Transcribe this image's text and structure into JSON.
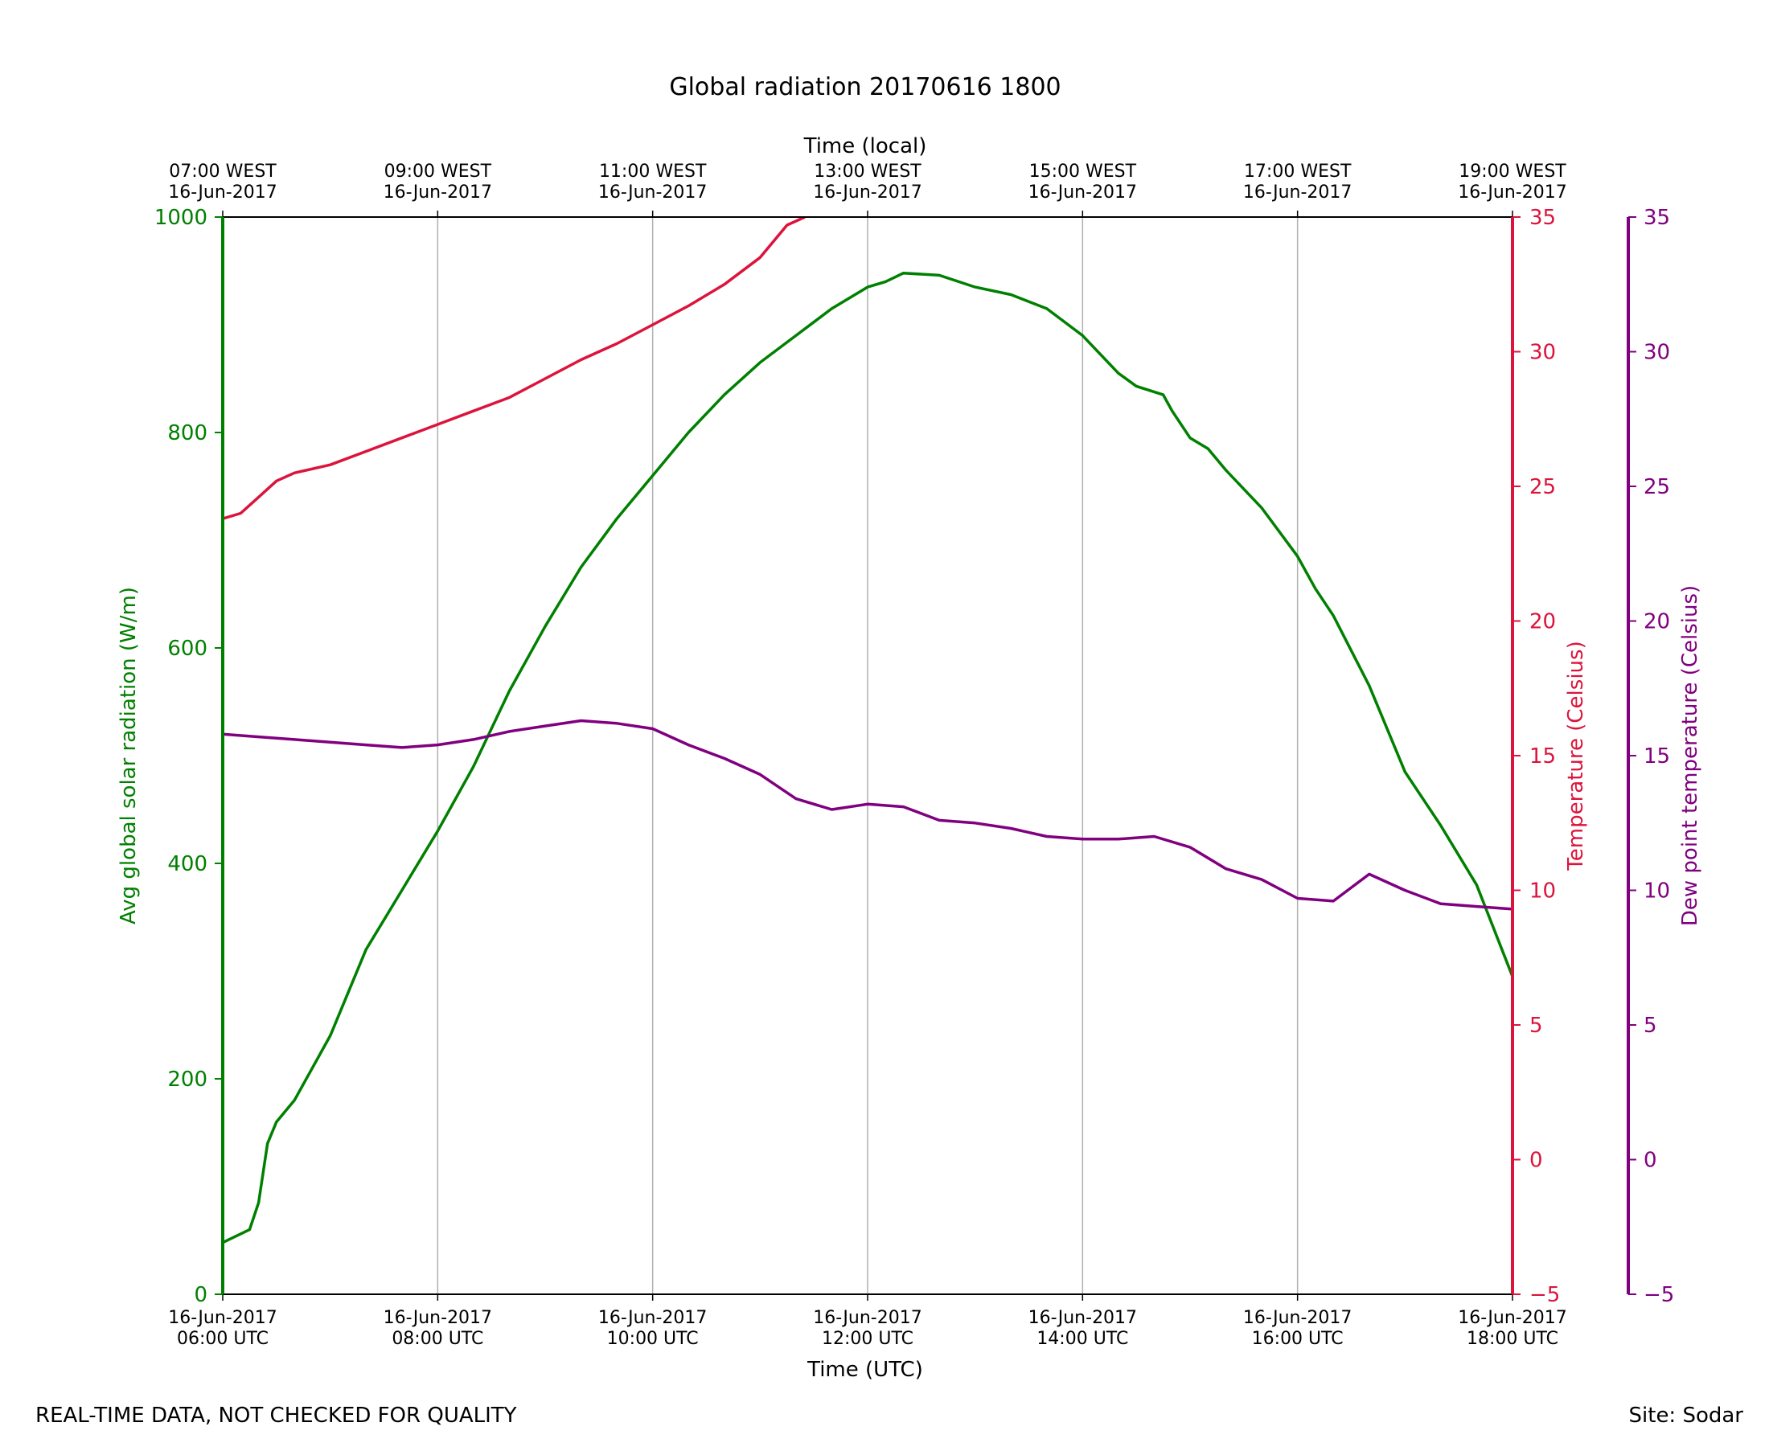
{
  "title": "Global radiation 20170616 1800",
  "footer": {
    "left": "REAL-TIME DATA, NOT CHECKED FOR QUALITY",
    "right": "Site: Sodar"
  },
  "colors": {
    "radiation": "#008000",
    "temperature": "#dc143c",
    "dewpoint": "#800080",
    "grid": "#b0b0b0",
    "axis": "#000000"
  },
  "chart_data": {
    "type": "line",
    "title": "Global radiation 20170616 1800",
    "xlabel": "Time (UTC)",
    "x2label": "Time (local)",
    "xlim": [
      "2017-06-16 06:00",
      "2017-06-16 18:00"
    ],
    "x_ticks": [
      {
        "bottom": [
          "16-Jun-2017",
          "06:00 UTC"
        ],
        "top": [
          "07:00 WEST",
          "16-Jun-2017"
        ]
      },
      {
        "bottom": [
          "16-Jun-2017",
          "08:00 UTC"
        ],
        "top": [
          "09:00 WEST",
          "16-Jun-2017"
        ]
      },
      {
        "bottom": [
          "16-Jun-2017",
          "10:00 UTC"
        ],
        "top": [
          "11:00 WEST",
          "16-Jun-2017"
        ]
      },
      {
        "bottom": [
          "16-Jun-2017",
          "12:00 UTC"
        ],
        "top": [
          "13:00 WEST",
          "16-Jun-2017"
        ]
      },
      {
        "bottom": [
          "16-Jun-2017",
          "14:00 UTC"
        ],
        "top": [
          "15:00 WEST",
          "16-Jun-2017"
        ]
      },
      {
        "bottom": [
          "16-Jun-2017",
          "16:00 UTC"
        ],
        "top": [
          "17:00 WEST",
          "16-Jun-2017"
        ]
      },
      {
        "bottom": [
          "16-Jun-2017",
          "18:00 UTC"
        ],
        "top": [
          "19:00 WEST",
          "16-Jun-2017"
        ]
      }
    ],
    "grid": "vertical",
    "axes": {
      "left": {
        "label": "Avg global solar radiation (W/m)",
        "ylim": [
          0,
          1000
        ],
        "ticks": [
          "0",
          "200",
          "400",
          "600",
          "800",
          "1000"
        ]
      },
      "right1": {
        "label": "Temperature (Celsius)",
        "ylim": [
          -5,
          35
        ],
        "ticks": [
          "−5",
          "0",
          "5",
          "10",
          "15",
          "20",
          "25",
          "30",
          "35"
        ]
      },
      "right2": {
        "label": "Dew point temperature (Celsius)",
        "ylim": [
          -5,
          35
        ],
        "ticks": [
          "−5",
          "0",
          "5",
          "10",
          "15",
          "20",
          "25",
          "30",
          "35"
        ]
      }
    },
    "series": [
      {
        "name": "Avg global solar radiation (W/m)",
        "axis": "left",
        "x": [
          "06:00",
          "06:15",
          "06:20",
          "06:25",
          "06:30",
          "06:40",
          "07:00",
          "07:20",
          "07:40",
          "08:00",
          "08:20",
          "08:40",
          "09:00",
          "09:20",
          "09:40",
          "10:00",
          "10:20",
          "10:40",
          "11:00",
          "11:20",
          "11:40",
          "12:00",
          "12:10",
          "12:20",
          "12:40",
          "13:00",
          "13:20",
          "13:40",
          "14:00",
          "14:20",
          "14:30",
          "14:45",
          "14:50",
          "15:00",
          "15:10",
          "15:20",
          "15:40",
          "16:00",
          "16:10",
          "16:20",
          "16:40",
          "17:00",
          "17:20",
          "17:40",
          "18:00"
        ],
        "values": [
          48,
          60,
          85,
          140,
          160,
          180,
          240,
          320,
          375,
          430,
          490,
          560,
          620,
          675,
          720,
          760,
          800,
          835,
          865,
          890,
          915,
          935,
          940,
          948,
          946,
          935,
          928,
          915,
          890,
          855,
          843,
          835,
          820,
          795,
          785,
          765,
          730,
          685,
          655,
          630,
          565,
          485,
          435,
          380,
          295
        ]
      },
      {
        "name": "Temperature (Celsius)",
        "axis": "right1",
        "x": [
          "06:00",
          "06:10",
          "06:20",
          "06:30",
          "06:40",
          "07:00",
          "07:20",
          "07:40",
          "08:00",
          "08:20",
          "08:40",
          "09:00",
          "09:20",
          "09:40",
          "10:00",
          "10:20",
          "10:40",
          "11:00",
          "11:15",
          "11:25"
        ],
        "values": [
          23.8,
          24.0,
          24.6,
          25.2,
          25.5,
          25.8,
          26.3,
          26.8,
          27.3,
          27.8,
          28.3,
          29.0,
          29.7,
          30.3,
          31.0,
          31.7,
          32.5,
          33.5,
          34.7,
          35.0
        ]
      },
      {
        "name": "Dew point temperature (Celsius)",
        "axis": "right2",
        "x": [
          "06:00",
          "06:20",
          "06:40",
          "07:00",
          "07:20",
          "07:40",
          "08:00",
          "08:20",
          "08:40",
          "09:00",
          "09:20",
          "09:40",
          "10:00",
          "10:20",
          "10:40",
          "11:00",
          "11:20",
          "11:40",
          "12:00",
          "12:20",
          "12:40",
          "13:00",
          "13:20",
          "13:40",
          "14:00",
          "14:20",
          "14:40",
          "15:00",
          "15:20",
          "15:40",
          "16:00",
          "16:20",
          "16:40",
          "17:00",
          "17:20",
          "17:40",
          "18:00"
        ],
        "values": [
          15.8,
          15.7,
          15.6,
          15.5,
          15.4,
          15.3,
          15.4,
          15.6,
          15.9,
          16.1,
          16.3,
          16.2,
          16.0,
          15.4,
          14.9,
          14.3,
          13.4,
          13.0,
          13.2,
          13.1,
          12.6,
          12.5,
          12.3,
          12.0,
          11.9,
          11.9,
          12.0,
          11.6,
          10.8,
          10.4,
          9.7,
          9.6,
          10.6,
          10.0,
          9.5,
          9.4,
          9.3
        ]
      }
    ]
  }
}
